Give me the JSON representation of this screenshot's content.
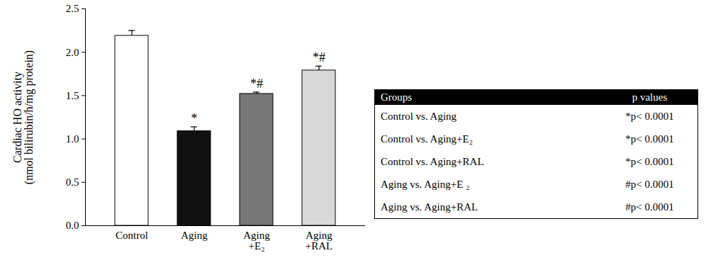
{
  "chart_data": {
    "type": "bar",
    "ylabel": "Cardiac HO activity\n(nmol bilirubin/h/mg protein)",
    "categories": [
      "Control",
      "Aging",
      "Aging\n+E₂",
      "Aging\n+RAL"
    ],
    "values": [
      2.19,
      1.09,
      1.52,
      1.79
    ],
    "errors": [
      0.06,
      0.05,
      0.02,
      0.05
    ],
    "colors": [
      "#ffffff",
      "#111111",
      "#777777",
      "#d9d9d9"
    ],
    "annotations": [
      null,
      "*",
      "*#",
      "*#"
    ],
    "ylim": [
      0,
      2.5
    ],
    "yticks": [
      {
        "value": 0,
        "label": "0.0"
      },
      0.5,
      {
        "value": 1,
        "label": "1.0"
      },
      1.5,
      {
        "value": 2,
        "label": "2.0"
      },
      2.5
    ],
    "table": {
      "columns": [
        "Groups",
        "p values"
      ],
      "rows": [
        [
          "Control vs. Aging",
          "*p< 0.0001"
        ],
        [
          "Control vs. Aging+E₂",
          "*p< 0.0001"
        ],
        [
          "Control vs. Aging+RAL",
          "*p< 0.0001"
        ],
        [
          "Aging vs. Aging+E ₂",
          "#p< 0.0001"
        ],
        [
          "Aging vs. Aging+RAL",
          "#p< 0.0001"
        ]
      ]
    }
  }
}
